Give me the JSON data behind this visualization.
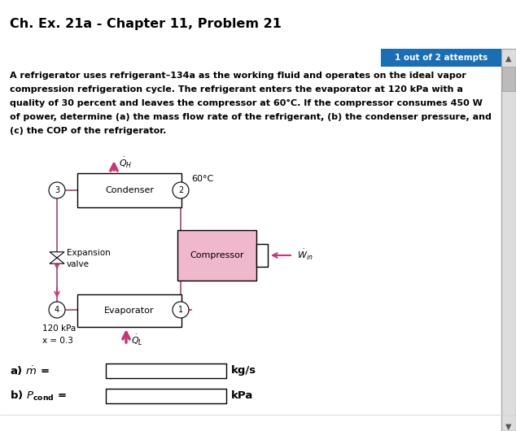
{
  "title": "Ch. Ex. 21a - Chapter 11, Problem 21",
  "badge_text": "1 out of 2 attempts",
  "badge_color": "#1a6eb5",
  "problem_text_lines": [
    "A refrigerator uses refrigerant–134a as the working fluid and operates on the ideal vapor",
    "compression refrigeration cycle. The refrigerant enters the evaporator at 120 kPa with a",
    "quality of 30 percent and leaves the compressor at 60°C. If the compressor consumes 450 W",
    "of power, determine (a) the mass flow rate of the refrigerant, (b) the condenser pressure, and",
    "(c) the COP of the refrigerator."
  ],
  "arrow_color": "#cc3377",
  "line_color": "#993366",
  "compressor_fill": "#f0b8cc",
  "bg_color": "#ffffff"
}
